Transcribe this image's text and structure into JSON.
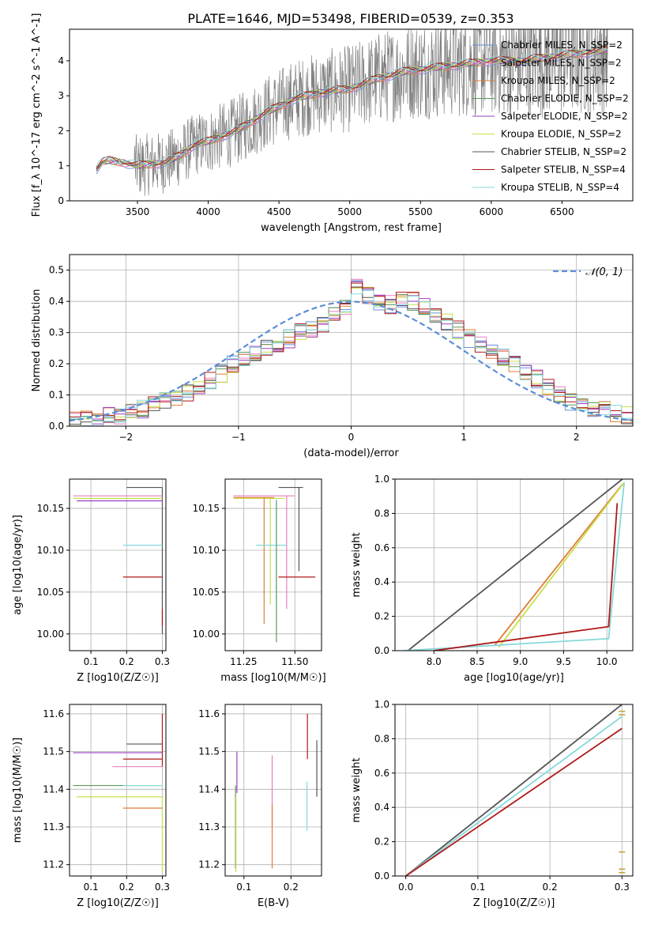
{
  "figure": {
    "title": "PLATE=1646, MJD=53498, FIBERID=0539, z=0.353"
  },
  "colors": {
    "Chabrier MILES": "#6a8fd8",
    "Salpeter MILES": "#e87fbf",
    "Kroupa MILES": "#e07b39",
    "Chabrier ELODIE": "#5e9a5e",
    "Salpeter ELODIE": "#9b3fc0",
    "Kroupa ELODIE": "#c6e048",
    "Chabrier STELIB": "#555555",
    "Salpeter STELIB": "#b01818",
    "Kroupa STELIB": "#86d8dc",
    "data": "#808080",
    "normal": "#5b8ed6"
  },
  "chart_data": [
    {
      "id": "spectrum",
      "type": "line",
      "title": "PLATE=1646, MJD=53498, FIBERID=0539, z=0.353",
      "xlabel": "wavelength [Angstrom, rest frame]",
      "ylabel": "Flux [f_λ 10^-17 erg cm^-2 s^-1 A^-1]",
      "xlim": [
        3020,
        7000
      ],
      "ylim": [
        0,
        4.9
      ],
      "xticks": [
        3500,
        4000,
        4500,
        5000,
        5500,
        6000,
        6500
      ],
      "yticks": [
        0,
        1,
        2,
        3,
        4
      ],
      "legend_position": "top-right",
      "legend": [
        "Chabrier MILES, N_SSP=2",
        "Salpeter MILES, N_SSP=2",
        "Kroupa MILES, N_SSP=2",
        "Chabrier ELODIE, N_SSP=2",
        "Salpeter ELODIE, N_SSP=2",
        "Kroupa ELODIE, N_SSP=2",
        "Chabrier STELIB, N_SSP=2",
        "Salpeter STELIB, N_SSP=4",
        "Kroupa STELIB, N_SSP=4"
      ],
      "continuum": {
        "x": [
          3210,
          3250,
          3300,
          3400,
          3500,
          3600,
          3700,
          3800,
          3900,
          4000,
          4200,
          4400,
          4600,
          4800,
          5000,
          5200,
          5400,
          5600,
          5800,
          6000,
          6200,
          6400,
          6600,
          6800
        ],
        "y": [
          0.9,
          1.1,
          1.15,
          1.1,
          1.0,
          1.05,
          1.1,
          1.3,
          1.6,
          1.7,
          2.0,
          2.5,
          2.9,
          3.1,
          3.2,
          3.5,
          3.7,
          3.8,
          3.9,
          4.0,
          4.0,
          4.1,
          4.2,
          4.3
        ]
      }
    },
    {
      "id": "residuals",
      "type": "line",
      "xlabel": "(data-model)/error",
      "ylabel": "Normed distribution",
      "xlim": [
        -2.5,
        2.5
      ],
      "ylim": [
        0,
        0.55
      ],
      "xticks": [
        -2,
        -1,
        0,
        1,
        2
      ],
      "yticks": [
        0.0,
        0.1,
        0.2,
        0.3,
        0.4,
        0.5
      ],
      "legend": [
        "𝒩(0, 1)"
      ],
      "legend_position": "top-right",
      "bin_width": 0.1,
      "histogram": [
        0.015,
        0.02,
        0.025,
        0.03,
        0.035,
        0.04,
        0.055,
        0.07,
        0.08,
        0.09,
        0.11,
        0.13,
        0.15,
        0.17,
        0.2,
        0.22,
        0.24,
        0.25,
        0.26,
        0.28,
        0.3,
        0.31,
        0.33,
        0.36,
        0.38,
        0.45,
        0.42,
        0.4,
        0.39,
        0.41,
        0.4,
        0.38,
        0.36,
        0.33,
        0.31,
        0.28,
        0.26,
        0.24,
        0.22,
        0.2,
        0.17,
        0.15,
        0.12,
        0.1,
        0.08,
        0.07,
        0.06,
        0.05,
        0.04,
        0.035
      ]
    },
    {
      "id": "age-vs-Z",
      "type": "scatter",
      "xlabel": "Z [log10(Z/Z☉)]",
      "ylabel": "age  [log10(age/yr)]",
      "xlim": [
        0.04,
        0.31
      ],
      "ylim": [
        9.98,
        10.185
      ],
      "xticks": [
        0.1,
        0.2,
        0.3
      ],
      "yticks": [
        10.0,
        10.05,
        10.1,
        10.15
      ],
      "series": [
        {
          "color": "Chabrier STELIB",
          "x": 0.3,
          "y": 10.175,
          "xerr": [
            0.2,
            0.3
          ],
          "yerr": [
            10.0,
            10.175
          ]
        },
        {
          "color": "Salpeter MILES",
          "x": 0.3,
          "y": 10.165,
          "xerr": [
            0.05,
            0.3
          ]
        },
        {
          "color": "Kroupa ELODIE",
          "x": 0.3,
          "y": 10.162,
          "xerr": [
            0.05,
            0.3
          ]
        },
        {
          "color": "Salpeter ELODIE",
          "x": 0.3,
          "y": 10.159,
          "xerr": [
            0.06,
            0.3
          ]
        },
        {
          "color": "Kroupa STELIB",
          "x": 0.3,
          "y": 10.106,
          "xerr": [
            0.19,
            0.3
          ]
        },
        {
          "color": "Salpeter STELIB",
          "x": 0.3,
          "y": 10.068,
          "xerr": [
            0.19,
            0.3
          ],
          "yerr": [
            10.01,
            10.03
          ]
        }
      ]
    },
    {
      "id": "age-vs-mass",
      "type": "scatter",
      "xlabel": "mass [log10(M/M☉)]",
      "ylabel": "",
      "xlim": [
        11.16,
        11.63
      ],
      "ylim": [
        9.98,
        10.185
      ],
      "xticks": [
        11.25,
        11.5
      ],
      "yticks": [
        10.0,
        10.05,
        10.1,
        10.15
      ],
      "series": [
        {
          "color": "Chabrier STELIB",
          "x": 11.52,
          "y": 10.175,
          "xerr": [
            11.42,
            11.54
          ],
          "yerr": [
            10.075,
            10.175
          ]
        },
        {
          "color": "Salpeter MILES",
          "x": 11.46,
          "y": 10.165,
          "xerr": [
            11.2,
            11.5
          ],
          "yerr": [
            10.03,
            10.165
          ]
        },
        {
          "color": "Kroupa ELODIE",
          "x": 11.38,
          "y": 10.162,
          "xerr": [
            11.2,
            11.45
          ],
          "yerr": [
            10.035,
            10.162
          ]
        },
        {
          "color": "Kroupa MILES",
          "x": 11.35,
          "y": 10.163,
          "xerr": [
            11.2,
            11.4
          ],
          "yerr": [
            10.012,
            10.163
          ]
        },
        {
          "color": "Kroupa STELIB",
          "x": 11.41,
          "y": 10.106,
          "xerr": [
            11.31,
            11.46
          ],
          "yerr": [
            10.04,
            10.16
          ]
        },
        {
          "color": "Salpeter STELIB",
          "x": 11.5,
          "y": 10.068,
          "xerr": [
            11.42,
            11.6
          ]
        },
        {
          "color": "Chabrier ELODIE",
          "x": 11.41,
          "y": 10.16,
          "yerr": [
            9.99,
            10.16
          ]
        }
      ]
    },
    {
      "id": "cumulative-age",
      "type": "line",
      "xlabel": "age  [log10(age/yr)]",
      "ylabel": "mass weight",
      "xlim": [
        7.55,
        10.3
      ],
      "ylim": [
        0,
        1
      ],
      "xticks": [
        8.0,
        8.5,
        9.0,
        9.5,
        10.0
      ],
      "yticks": [
        0.0,
        0.2,
        0.4,
        0.6,
        0.8,
        1.0
      ],
      "series": [
        {
          "color": "Chabrier STELIB",
          "x": [
            7.7,
            10.18
          ],
          "y": [
            0.0,
            1.0
          ]
        },
        {
          "color": "Kroupa MILES",
          "x": [
            8.7,
            10.18
          ],
          "y": [
            0.03,
            0.97
          ]
        },
        {
          "color": "Kroupa ELODIE",
          "x": [
            8.75,
            10.2
          ],
          "y": [
            0.02,
            0.98
          ]
        },
        {
          "color": "Kroupa STELIB",
          "x": [
            7.65,
            10.02,
            10.2
          ],
          "y": [
            0.0,
            0.07,
            0.98
          ]
        },
        {
          "color": "Salpeter STELIB",
          "x": [
            8.0,
            10.02,
            10.12
          ],
          "y": [
            0.0,
            0.14,
            0.86
          ]
        }
      ]
    },
    {
      "id": "mass-vs-Z",
      "type": "scatter",
      "xlabel": "Z [log10(Z/Z☉)]",
      "ylabel": "mass [log10(M/M☉)]",
      "xlim": [
        0.04,
        0.31
      ],
      "ylim": [
        11.17,
        11.625
      ],
      "xticks": [
        0.1,
        0.2,
        0.3
      ],
      "yticks": [
        11.2,
        11.3,
        11.4,
        11.5,
        11.6
      ],
      "series": [
        {
          "color": "Chabrier STELIB",
          "x": 0.3,
          "y": 11.52,
          "xerr": [
            0.2,
            0.3
          ]
        },
        {
          "color": "Salpeter ELODIE",
          "x": 0.3,
          "y": 11.497,
          "xerr": [
            0.05,
            0.3
          ]
        },
        {
          "color": "Salpeter STELIB",
          "x": 0.3,
          "y": 11.48,
          "xerr": [
            0.19,
            0.3
          ],
          "yerr": [
            11.46,
            11.6
          ]
        },
        {
          "color": "Salpeter MILES",
          "x": 0.3,
          "y": 11.46,
          "xerr": [
            0.16,
            0.3
          ]
        },
        {
          "color": "Chabrier ELODIE",
          "x": 0.3,
          "y": 11.41,
          "xerr": [
            0.05,
            0.3
          ]
        },
        {
          "color": "Kroupa STELIB",
          "x": 0.3,
          "y": 11.41,
          "xerr": [
            0.19,
            0.3
          ]
        },
        {
          "color": "Kroupa ELODIE",
          "x": 0.3,
          "y": 11.38,
          "xerr": [
            0.06,
            0.3
          ],
          "yerr": [
            11.18,
            11.38
          ]
        },
        {
          "color": "Kroupa MILES",
          "x": 0.3,
          "y": 11.35,
          "xerr": [
            0.19,
            0.3
          ]
        }
      ]
    },
    {
      "id": "mass-vs-EBV",
      "type": "scatter",
      "xlabel": "E(B-V)",
      "ylabel": "",
      "xlim": [
        0.06,
        0.265
      ],
      "ylim": [
        11.17,
        11.625
      ],
      "xticks": [
        0.1,
        0.2
      ],
      "yticks": [
        11.2,
        11.3,
        11.4,
        11.5,
        11.6
      ],
      "series": [
        {
          "color": "Salpeter ELODIE",
          "x": 0.085,
          "yerr": [
            11.39,
            11.5
          ]
        },
        {
          "color": "Chabrier ELODIE",
          "x": 0.082,
          "yerr": [
            11.19,
            11.41
          ]
        },
        {
          "color": "Kroupa ELODIE",
          "x": 0.083,
          "yerr": [
            11.18,
            11.38
          ]
        },
        {
          "color": "Salpeter MILES",
          "x": 0.16,
          "yerr": [
            11.3,
            11.49
          ]
        },
        {
          "color": "Kroupa MILES",
          "x": 0.16,
          "yerr": [
            11.19,
            11.36
          ]
        },
        {
          "color": "Kroupa STELIB",
          "x": 0.234,
          "yerr": [
            11.29,
            11.42
          ]
        },
        {
          "color": "Salpeter STELIB",
          "x": 0.235,
          "yerr": [
            11.48,
            11.6
          ]
        },
        {
          "color": "Chabrier STELIB",
          "x": 0.255,
          "yerr": [
            11.38,
            11.53
          ]
        }
      ]
    },
    {
      "id": "cumulative-Z",
      "type": "line",
      "xlabel": "Z [log10(Z/Z☉)]",
      "ylabel": "mass weight",
      "xlim": [
        -0.015,
        0.315
      ],
      "ylim": [
        0,
        1
      ],
      "xticks": [
        0.0,
        0.1,
        0.2,
        0.3
      ],
      "yticks": [
        0.0,
        0.2,
        0.4,
        0.6,
        0.8,
        1.0
      ],
      "series": [
        {
          "color": "Chabrier STELIB",
          "x": [
            0.0,
            0.3
          ],
          "y": [
            0.0,
            1.0
          ]
        },
        {
          "color": "Kroupa STELIB",
          "x": [
            0.0,
            0.3
          ],
          "y": [
            0.0,
            0.93
          ]
        },
        {
          "color": "Salpeter STELIB",
          "x": [
            0.0,
            0.3
          ],
          "y": [
            0.0,
            0.86
          ]
        }
      ],
      "end_markers": [
        0.96,
        0.94,
        0.14,
        0.04,
        0.02
      ]
    }
  ]
}
